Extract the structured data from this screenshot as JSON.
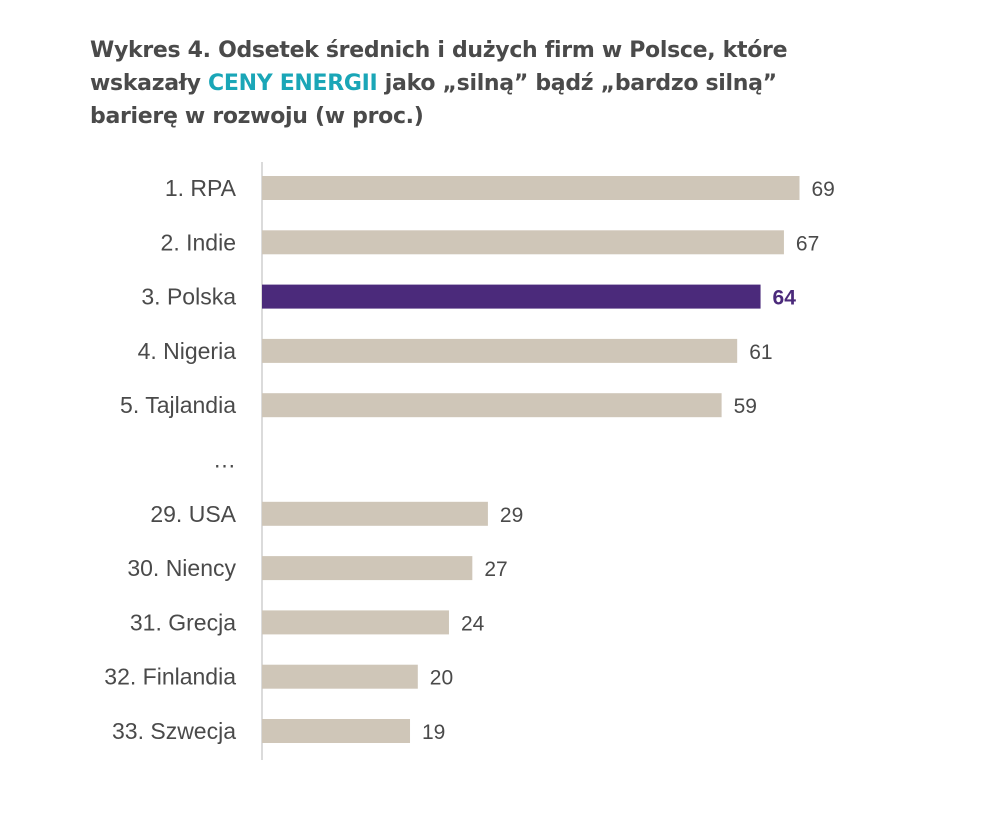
{
  "title": {
    "before": "Wykres 4. Odsetek średnich i dużych firm w Polsce, które wskazały ",
    "highlight": "CENY ENERGII",
    "after": " jako „silną” bądź „bardzo silną” barierę w rozwoju (w proc.)"
  },
  "colors": {
    "bar": "#cfc6b8",
    "highlight_bar": "#4b2a7b",
    "highlight_text": "#1aa6b7",
    "text": "#4a4a4a",
    "axis": "#cfcfcf"
  },
  "chart_data": {
    "type": "bar",
    "orientation": "horizontal",
    "xlim": [
      0,
      75
    ],
    "categories": [
      "1. RPA",
      "2. Indie",
      "3. Polska",
      "4. Nigeria",
      "5. Tajlandia",
      "…",
      "29. USA",
      "30. Niency",
      "31. Grecja",
      "32. Finlandia",
      "33. Szwecja"
    ],
    "values": [
      69,
      67,
      64,
      61,
      59,
      null,
      29,
      27,
      24,
      20,
      19
    ],
    "value_labels": [
      "69",
      "67",
      "64",
      "61",
      "59",
      "",
      "29",
      "27",
      "24",
      "20",
      "19"
    ],
    "highlight_index": 2,
    "grid": false,
    "legend": "none"
  }
}
